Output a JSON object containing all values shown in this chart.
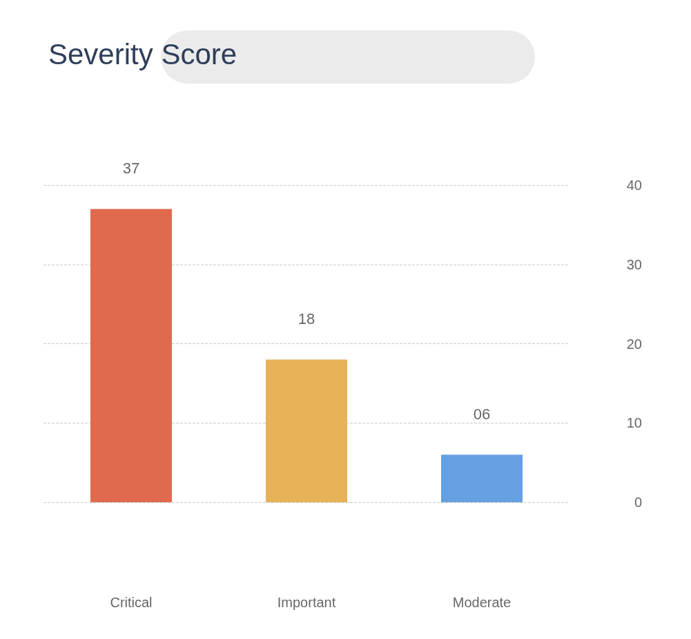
{
  "chart_data": {
    "type": "bar",
    "title": "Severity Score",
    "categories": [
      "Critical",
      "Important",
      "Moderate"
    ],
    "values": [
      37,
      18,
      6
    ],
    "value_labels": [
      "37",
      "18",
      "06"
    ],
    "colors": [
      "#e06a4e",
      "#e8b258",
      "#64a0e2"
    ],
    "ylim": [
      0,
      40
    ],
    "yticks": [
      0,
      10,
      20,
      30,
      40
    ],
    "grid": "y"
  }
}
